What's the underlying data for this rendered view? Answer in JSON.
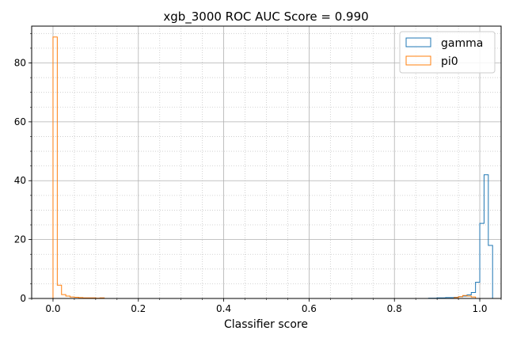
{
  "chart_data": {
    "type": "histogram",
    "title": "xgb_3000 ROC AUC Score = 0.990",
    "xlabel": "Classifier score",
    "ylabel": "",
    "xlim": [
      -0.05,
      1.05
    ],
    "ylim": [
      0,
      92.5
    ],
    "xticks": [
      0.0,
      0.2,
      0.4,
      0.6,
      0.8,
      1.0
    ],
    "xtick_labels": [
      "0.0",
      "0.2",
      "0.4",
      "0.6",
      "0.8",
      "1.0"
    ],
    "yticks": [
      0,
      20,
      40,
      60,
      80
    ],
    "ytick_labels": [
      "0",
      "20",
      "40",
      "60",
      "80"
    ],
    "grid": true,
    "minor_grid": true,
    "histtype": "step",
    "bin_width": 0.01,
    "legend_position": "top-right",
    "series": [
      {
        "name": "gamma",
        "color": "#1f77b4",
        "bin_start": 0.8,
        "values": [
          0,
          0,
          0,
          0,
          0,
          0,
          0,
          0,
          0.1,
          0.1,
          0.2,
          0.2,
          0.3,
          0.3,
          0.4,
          0.6,
          0.8,
          1.2,
          2.0,
          5.5,
          25.5,
          42.0,
          18.0
        ]
      },
      {
        "name": "pi0",
        "color": "#ff7f0e",
        "bin_start": 0.0,
        "values": [
          88.8,
          4.5,
          1.3,
          0.8,
          0.5,
          0.4,
          0.3,
          0.2,
          0.2,
          0.2,
          0.1,
          0.2
        ],
        "tail_bin_start": 0.94,
        "tail_values": [
          0.3,
          0.6,
          1.0,
          0.8,
          0.5
        ]
      }
    ]
  }
}
